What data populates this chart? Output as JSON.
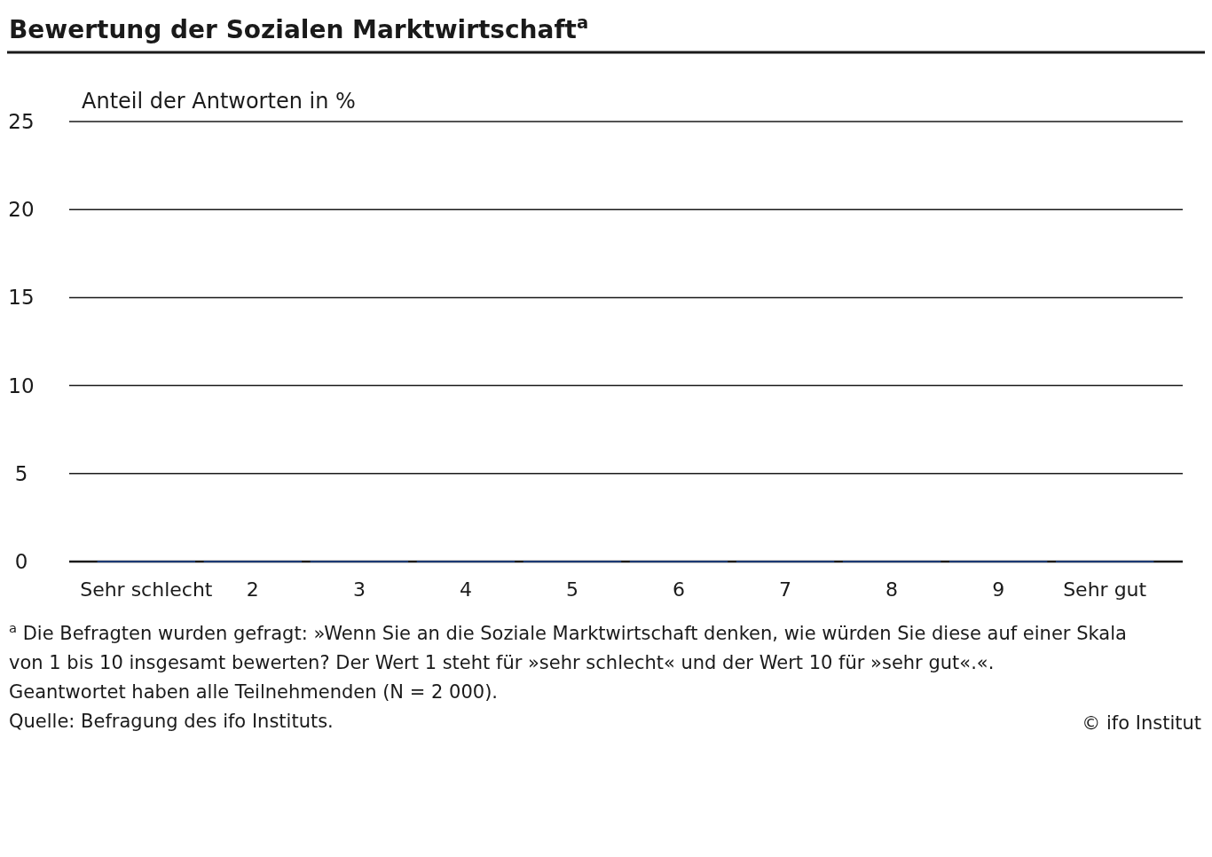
{
  "chart_data": {
    "type": "bar",
    "title": "Bewertung der Sozialen Marktwirtschaft$^{a}$",
    "ylabel": "Anteil der Antworten in %",
    "categories": [
      "Sehr schlecht",
      "2",
      "3",
      "4",
      "5",
      "6",
      "7",
      "8",
      "9",
      "Sehr gut"
    ],
    "values": [
      0,
      0,
      0,
      0,
      0,
      0,
      0,
      0,
      0,
      0
    ],
    "color": "#1b3a73",
    "ylim": [
      0,
      25
    ],
    "yticks": [
      0,
      5,
      10,
      15,
      20,
      25
    ],
    "grid": "y",
    "annotations": [
      "$^{a}$ Die Befragten wurden gefragt: »Wenn Sie an die Soziale Marktwirtschaft denken, wie würden Sie diese auf einer Skala",
      "von 1 bis 10 insgesamt bewerten? Der Wert 1 steht für »sehr schlecht« und der Wert 10 für »sehr gut«.«.",
      "Geantwortet haben alle Teilnehmenden (N = 2 000).",
      "Quelle: Befragung des ifo Instituts.",
      "© ifo Institut"
    ]
  }
}
